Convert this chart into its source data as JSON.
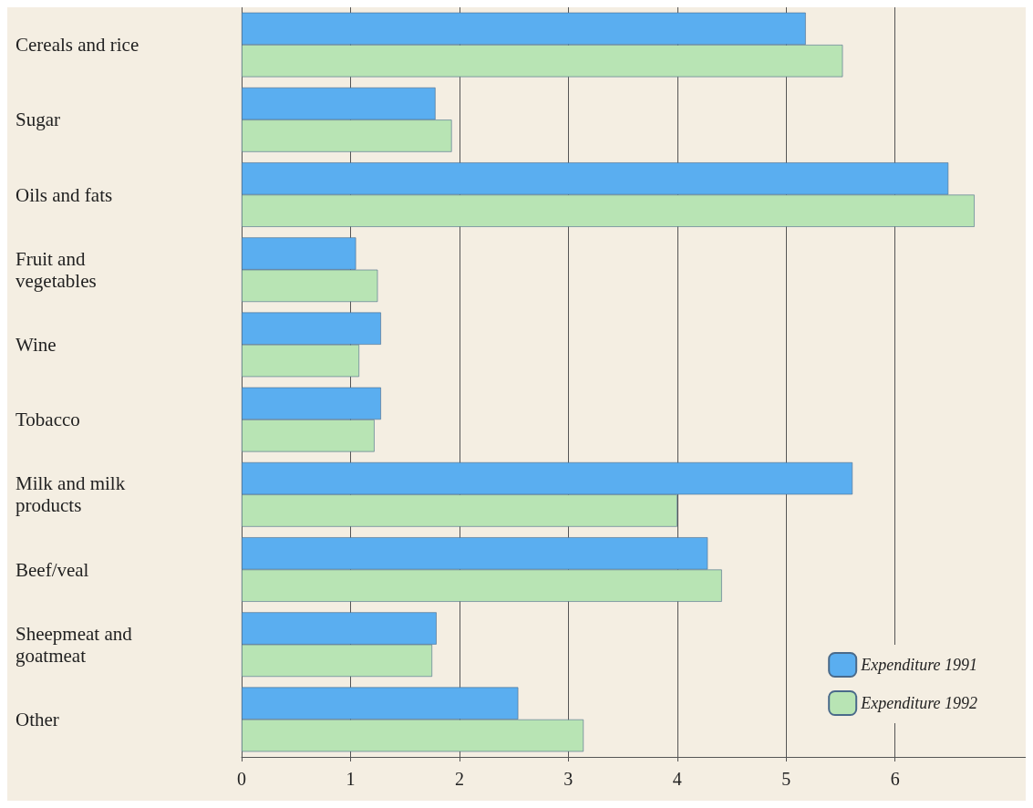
{
  "chart_data": {
    "type": "bar",
    "orientation": "horizontal",
    "categories": [
      "Cereals and rice",
      "Sugar",
      "Oils and fats",
      "Fruit and vegetables",
      "Wine",
      "Tobacco",
      "Milk and milk products",
      "Beef/veal",
      "Sheepmeat and goatmeat",
      "Other"
    ],
    "series": [
      {
        "name": "Expenditure 1991",
        "color": "#5aaef0",
        "values": [
          5.18,
          1.78,
          6.49,
          1.05,
          1.28,
          1.28,
          5.61,
          4.28,
          1.79,
          2.54
        ]
      },
      {
        "name": "Expenditure 1992",
        "color": "#b8e4b4",
        "values": [
          5.52,
          1.93,
          6.73,
          1.25,
          1.08,
          1.22,
          4.0,
          4.41,
          1.75,
          3.14
        ]
      }
    ],
    "xlim": [
      0,
      7.2
    ],
    "xticks": [
      0,
      1,
      2,
      3,
      4,
      5,
      6
    ],
    "grid": "x",
    "legend": "bottom right"
  }
}
